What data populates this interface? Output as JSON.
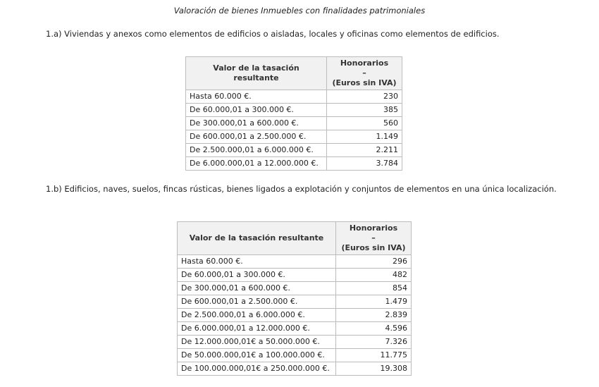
{
  "title": "Valoración de bienes Inmuebles con finalidades patrimoniales",
  "section_a": {
    "heading": "1.a) Viviendas y anexos como elementos de edificios o aisladas, locales y oficinas como elementos de edificios.",
    "columns": [
      "Valor de la tasación resultante",
      "Honorarios",
      "–",
      "(Euros sin IVA)"
    ],
    "rows": [
      [
        "Hasta 60.000 €.",
        "230"
      ],
      [
        "De 60.000,01 a 300.000 €.",
        "385"
      ],
      [
        "De 300.000,01 a 600.000 €.",
        "560"
      ],
      [
        "De 600.000,01 a 2.500.000 €.",
        "1.149"
      ],
      [
        "De 2.500.000,01 a 6.000.000 €.",
        "2.211"
      ],
      [
        "De 6.000.000,01 a 12.000.000 €.",
        "3.784"
      ]
    ]
  },
  "section_b": {
    "heading": "1.b) Edificios, naves, suelos, fincas rústicas, bienes ligados a explotación y conjuntos de elementos en una única localización.",
    "columns": [
      "Valor de la tasación resultante",
      "Honorarios",
      "–",
      "(Euros sin IVA)"
    ],
    "rows": [
      [
        "Hasta 60.000 €.",
        "296"
      ],
      [
        "De 60.000,01 a 300.000 €.",
        "482"
      ],
      [
        "De 300.000,01 a 600.000 €.",
        "854"
      ],
      [
        "De 600.000,01 a 2.500.000 €.",
        "1.479"
      ],
      [
        "De 2.500.000,01 a 6.000.000 €.",
        "2.839"
      ],
      [
        "De 6.000.000,01 a 12.000.000 €.",
        "4.596"
      ],
      [
        "De 12.000.000,01€ a 50.000.000 €.",
        "7.326"
      ],
      [
        "De 50.000.000,01€ a 100.000.000 €.",
        "11.775"
      ],
      [
        "De 100.000.000,01€ a 250.000.000 €.",
        "19.308"
      ]
    ]
  }
}
